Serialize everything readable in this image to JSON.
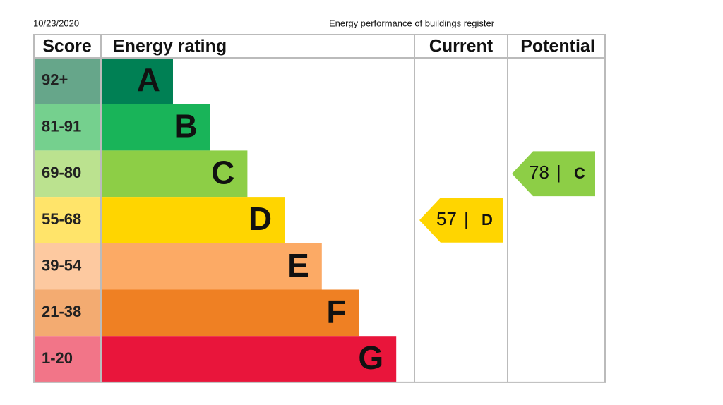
{
  "header": {
    "date": "10/23/2020",
    "title": "Energy performance of buildings register"
  },
  "table": {
    "headers": [
      "Score",
      "Energy rating",
      "Current",
      "Potential"
    ],
    "bands": [
      {
        "score": "92+",
        "letter": "A",
        "color": "#008054",
        "tint": "#66a68a"
      },
      {
        "score": "81-91",
        "letter": "B",
        "color": "#19b459",
        "tint": "#75d08e"
      },
      {
        "score": "69-80",
        "letter": "C",
        "color": "#8dce46",
        "tint": "#bbe28f"
      },
      {
        "score": "55-68",
        "letter": "D",
        "color": "#ffd500",
        "tint": "#ffe46a"
      },
      {
        "score": "39-54",
        "letter": "E",
        "color": "#fcaa65",
        "tint": "#fdc9a0"
      },
      {
        "score": "21-38",
        "letter": "F",
        "color": "#ef8023",
        "tint": "#f3ab71"
      },
      {
        "score": "1-20",
        "letter": "G",
        "color": "#e9153b",
        "tint": "#f27588"
      }
    ],
    "current": {
      "value": "57",
      "separator": "|",
      "letter": "D"
    },
    "potential": {
      "value": "78",
      "separator": "|",
      "letter": "C"
    }
  }
}
